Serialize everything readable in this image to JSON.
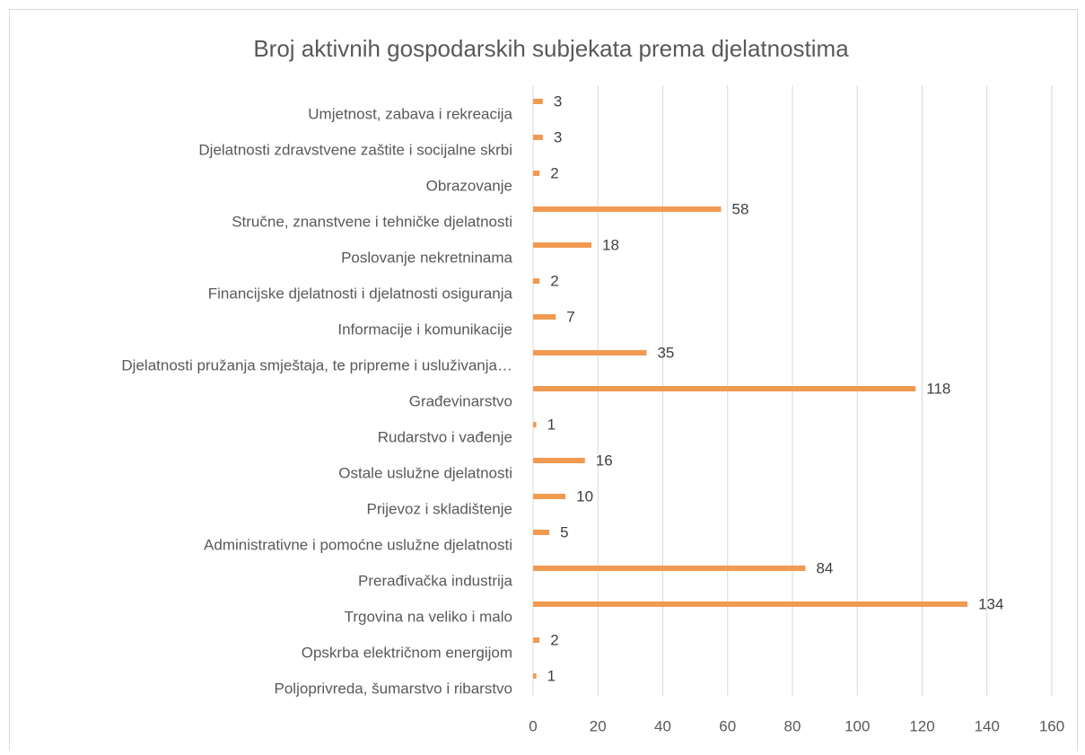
{
  "chart_data": {
    "type": "bar",
    "orientation": "horizontal",
    "title": "Broj aktivnih gospodarskih subjekata prema djelatnostima",
    "categories": [
      "Umjetnost, zabava i rekreacija",
      "Djelatnosti zdravstvene zaštite i socijalne skrbi",
      "Obrazovanje",
      "Stručne, znanstvene i tehničke djelatnosti",
      "Poslovanje nekretninama",
      "Financijske djelatnosti i djelatnosti osiguranja",
      "Informacije i komunikacije",
      "Djelatnosti pružanja smještaja, te pripreme i usluživanja…",
      "Građevinarstvo",
      "Rudarstvo i vađenje",
      "Ostale uslužne djelatnosti",
      "Prijevoz i skladištenje",
      "Administrativne i pomoćne uslužne djelatnosti",
      "Prerađivačka industrija",
      "Trgovina na veliko i malo",
      "Opskrba električnom energijom",
      "Poljoprivreda, šumarstvo i ribarstvo"
    ],
    "values": [
      3,
      3,
      2,
      58,
      18,
      2,
      7,
      35,
      118,
      1,
      16,
      10,
      5,
      84,
      134,
      2,
      1
    ],
    "color": "#f19a52",
    "xlim": [
      0,
      160
    ],
    "xticks": [
      0,
      20,
      40,
      60,
      80,
      100,
      120,
      140,
      160
    ],
    "grid": true
  }
}
